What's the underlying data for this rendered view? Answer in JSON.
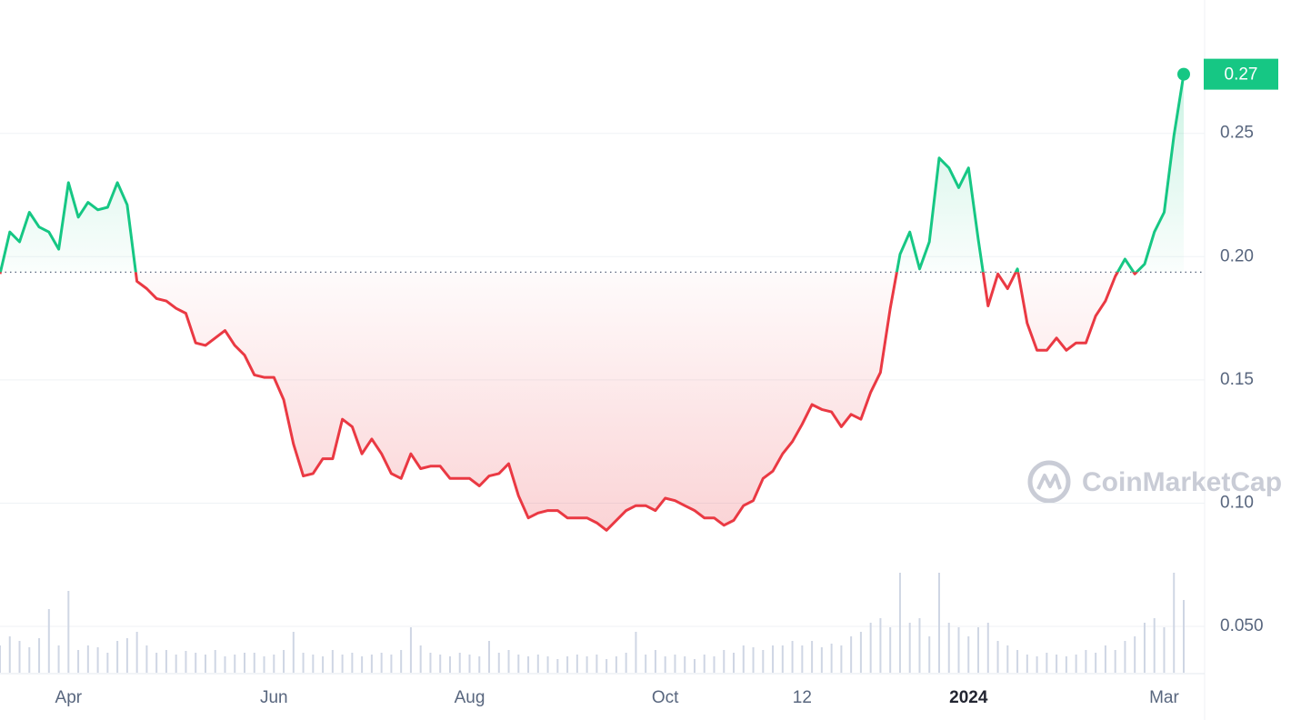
{
  "chart_data": {
    "type": "line",
    "categories": [
      null,
      null,
      null,
      null,
      null,
      null,
      null,
      "Apr",
      null,
      null,
      null,
      null,
      null,
      null,
      null,
      null,
      null,
      null,
      null,
      null,
      null,
      null,
      null,
      null,
      null,
      null,
      null,
      null,
      "Jun",
      null,
      null,
      null,
      null,
      null,
      null,
      null,
      null,
      null,
      null,
      null,
      null,
      null,
      null,
      null,
      null,
      null,
      null,
      null,
      "Aug",
      null,
      null,
      null,
      null,
      null,
      null,
      null,
      null,
      null,
      null,
      null,
      null,
      null,
      null,
      null,
      null,
      null,
      null,
      null,
      "Oct",
      null,
      null,
      null,
      null,
      null,
      null,
      null,
      null,
      null,
      null,
      null,
      null,
      null,
      "12",
      null,
      null,
      null,
      null,
      null,
      null,
      null,
      null,
      null,
      null,
      null,
      null,
      null,
      null,
      null,
      null,
      "2024",
      null,
      null,
      null,
      null,
      null,
      null,
      null,
      null,
      null,
      null,
      null,
      null,
      null,
      null,
      null,
      null,
      null,
      null,
      null,
      "Mar",
      null,
      null
    ],
    "values": [
      0.193,
      0.21,
      0.206,
      0.218,
      0.212,
      0.21,
      0.203,
      0.23,
      0.216,
      0.222,
      0.219,
      0.22,
      0.23,
      0.221,
      0.19,
      0.187,
      0.183,
      0.182,
      0.179,
      0.177,
      0.165,
      0.164,
      0.167,
      0.17,
      0.164,
      0.16,
      0.152,
      0.151,
      0.151,
      0.142,
      0.124,
      0.111,
      0.112,
      0.118,
      0.118,
      0.134,
      0.131,
      0.12,
      0.126,
      0.12,
      0.112,
      0.11,
      0.12,
      0.114,
      0.115,
      0.115,
      0.11,
      0.11,
      0.11,
      0.107,
      0.111,
      0.112,
      0.116,
      0.103,
      0.094,
      0.096,
      0.097,
      0.097,
      0.094,
      0.094,
      0.094,
      0.092,
      0.089,
      0.093,
      0.097,
      0.099,
      0.099,
      0.097,
      0.102,
      0.101,
      0.099,
      0.097,
      0.094,
      0.094,
      0.091,
      0.093,
      0.099,
      0.101,
      0.11,
      0.113,
      0.12,
      0.125,
      0.132,
      0.14,
      0.138,
      0.137,
      0.131,
      0.136,
      0.134,
      0.145,
      0.153,
      0.179,
      0.201,
      0.21,
      0.195,
      0.206,
      0.24,
      0.236,
      0.228,
      0.236,
      0.207,
      0.18,
      0.193,
      0.187,
      0.195,
      0.173,
      0.162,
      0.162,
      0.167,
      0.162,
      0.165,
      0.165,
      0.176,
      0.182,
      0.192,
      0.199,
      0.193,
      0.197,
      0.21,
      0.218,
      0.249,
      0.274
    ],
    "last_price_label": "0.27",
    "volume": [
      30,
      40,
      35,
      28,
      38,
      70,
      30,
      90,
      25,
      30,
      28,
      22,
      35,
      38,
      45,
      30,
      22,
      25,
      20,
      24,
      22,
      20,
      25,
      18,
      20,
      22,
      22,
      18,
      20,
      25,
      45,
      22,
      20,
      18,
      25,
      20,
      22,
      18,
      20,
      22,
      20,
      25,
      50,
      30,
      22,
      20,
      18,
      22,
      20,
      18,
      35,
      22,
      25,
      20,
      18,
      20,
      18,
      15,
      18,
      20,
      18,
      20,
      15,
      18,
      22,
      45,
      20,
      25,
      18,
      20,
      18,
      15,
      20,
      18,
      25,
      22,
      30,
      28,
      25,
      30,
      30,
      35,
      30,
      35,
      28,
      32,
      30,
      40,
      45,
      55,
      60,
      50,
      110,
      55,
      60,
      40,
      110,
      55,
      50,
      40,
      50,
      55,
      35,
      30,
      25,
      20,
      18,
      22,
      20,
      18,
      20,
      25,
      22,
      30,
      25,
      35,
      40,
      55,
      60,
      50,
      110,
      80
    ],
    "baseline": 0.1937,
    "color_up": "#16c784",
    "color_down": "#ea3943",
    "volume_color": "#cfd6e4",
    "ylim": [
      0.0312,
      0.3041
    ],
    "yticks": [
      {
        "value": 0.05,
        "label": "0.050"
      },
      {
        "value": 0.1,
        "label": "0.10"
      },
      0.15,
      {
        "value": 0.2,
        "label": "0.20"
      },
      0.25
    ],
    "grid": true,
    "watermark": "CoinMarketCap"
  }
}
